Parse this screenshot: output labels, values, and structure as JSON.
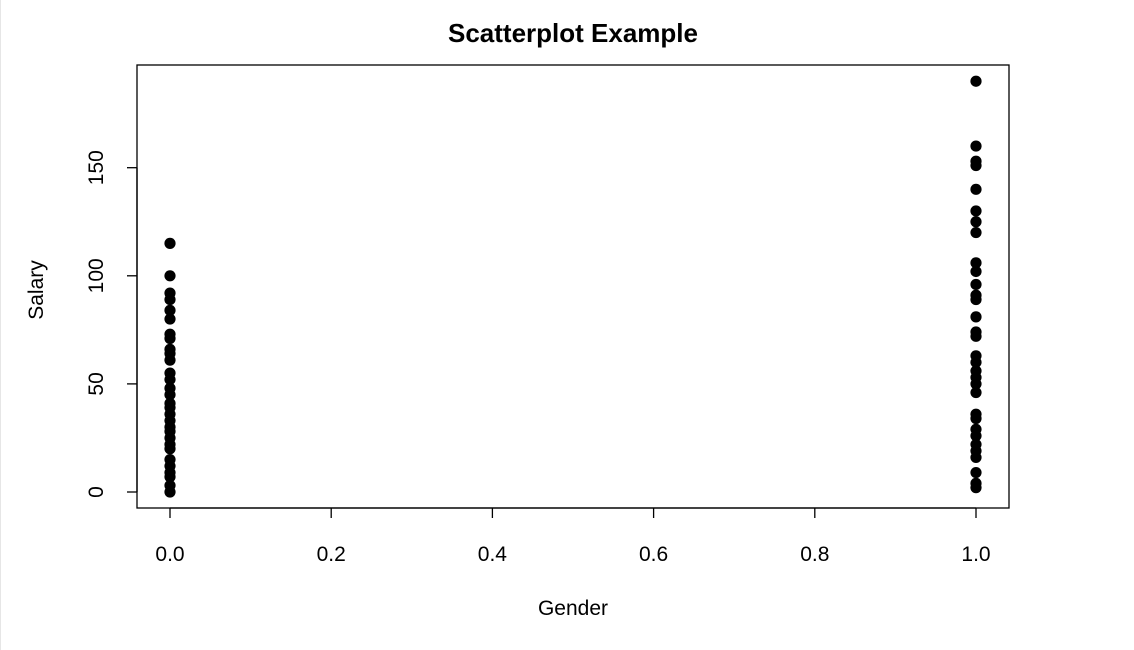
{
  "chart_data": {
    "type": "scatter",
    "title": "Scatterplot Example",
    "xlabel": "Gender",
    "ylabel": "Salary",
    "xlim": [
      0,
      1
    ],
    "ylim": [
      0,
      190
    ],
    "xticks": [
      "0.0",
      "0.2",
      "0.4",
      "0.6",
      "0.8",
      "1.0"
    ],
    "yticks": [
      "0",
      "50",
      "100",
      "150"
    ],
    "grid": false,
    "marker_color": "#000000",
    "series": [
      {
        "points": [
          {
            "x": 0,
            "y": 115
          },
          {
            "x": 0,
            "y": 100
          },
          {
            "x": 0,
            "y": 92
          },
          {
            "x": 0,
            "y": 89
          },
          {
            "x": 0,
            "y": 84
          },
          {
            "x": 0,
            "y": 80
          },
          {
            "x": 0,
            "y": 73
          },
          {
            "x": 0,
            "y": 71
          },
          {
            "x": 0,
            "y": 66
          },
          {
            "x": 0,
            "y": 64
          },
          {
            "x": 0,
            "y": 61
          },
          {
            "x": 0,
            "y": 55
          },
          {
            "x": 0,
            "y": 52
          },
          {
            "x": 0,
            "y": 48
          },
          {
            "x": 0,
            "y": 45
          },
          {
            "x": 0,
            "y": 41
          },
          {
            "x": 0,
            "y": 39
          },
          {
            "x": 0,
            "y": 36
          },
          {
            "x": 0,
            "y": 33
          },
          {
            "x": 0,
            "y": 30
          },
          {
            "x": 0,
            "y": 28
          },
          {
            "x": 0,
            "y": 25
          },
          {
            "x": 0,
            "y": 22
          },
          {
            "x": 0,
            "y": 20
          },
          {
            "x": 0,
            "y": 15
          },
          {
            "x": 0,
            "y": 12
          },
          {
            "x": 0,
            "y": 9
          },
          {
            "x": 0,
            "y": 7
          },
          {
            "x": 0,
            "y": 3
          },
          {
            "x": 0,
            "y": 0
          },
          {
            "x": 1,
            "y": 190
          },
          {
            "x": 1,
            "y": 160
          },
          {
            "x": 1,
            "y": 153
          },
          {
            "x": 1,
            "y": 151
          },
          {
            "x": 1,
            "y": 140
          },
          {
            "x": 1,
            "y": 130
          },
          {
            "x": 1,
            "y": 125
          },
          {
            "x": 1,
            "y": 120
          },
          {
            "x": 1,
            "y": 106
          },
          {
            "x": 1,
            "y": 102
          },
          {
            "x": 1,
            "y": 96
          },
          {
            "x": 1,
            "y": 91
          },
          {
            "x": 1,
            "y": 89
          },
          {
            "x": 1,
            "y": 81
          },
          {
            "x": 1,
            "y": 74
          },
          {
            "x": 1,
            "y": 72
          },
          {
            "x": 1,
            "y": 63
          },
          {
            "x": 1,
            "y": 60
          },
          {
            "x": 1,
            "y": 56
          },
          {
            "x": 1,
            "y": 53
          },
          {
            "x": 1,
            "y": 50
          },
          {
            "x": 1,
            "y": 46
          },
          {
            "x": 1,
            "y": 36
          },
          {
            "x": 1,
            "y": 34
          },
          {
            "x": 1,
            "y": 29
          },
          {
            "x": 1,
            "y": 26
          },
          {
            "x": 1,
            "y": 22
          },
          {
            "x": 1,
            "y": 19
          },
          {
            "x": 1,
            "y": 16
          },
          {
            "x": 1,
            "y": 9
          },
          {
            "x": 1,
            "y": 4
          },
          {
            "x": 1,
            "y": 2
          }
        ]
      }
    ]
  }
}
